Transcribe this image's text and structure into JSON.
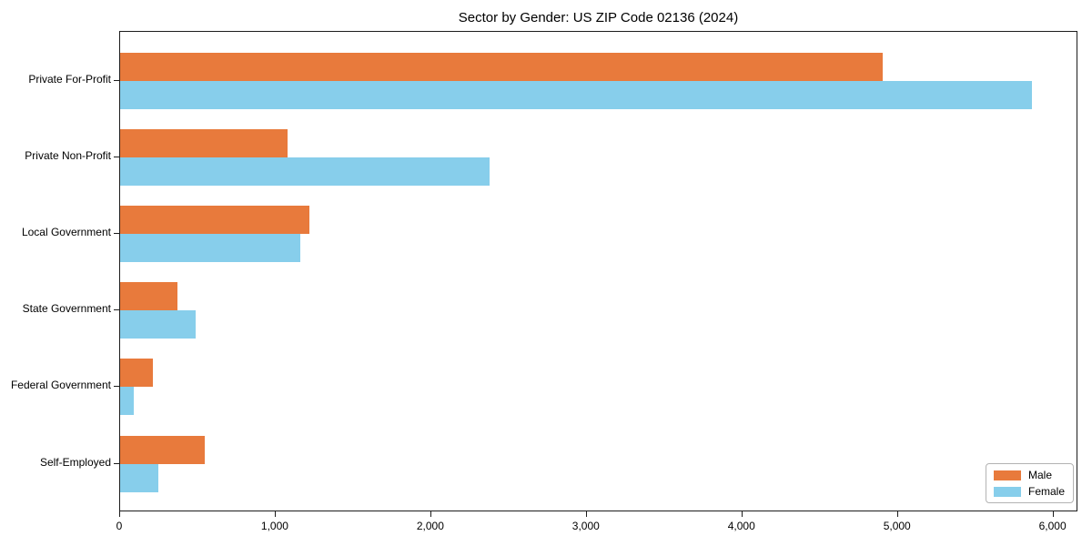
{
  "page": {
    "background": "#ffffff"
  },
  "chart_data": {
    "type": "bar",
    "orientation": "horizontal",
    "title": "Sector by Gender: US ZIP Code 02136 (2024)",
    "xlabel": "",
    "ylabel": "",
    "categories": [
      "Private For-Profit",
      "Private Non-Profit",
      "Local Government",
      "State Government",
      "Federal Government",
      "Self-Employed"
    ],
    "series": [
      {
        "name": "Male",
        "color": "#e87a3c",
        "values": [
          4910,
          1080,
          1220,
          370,
          210,
          545
        ]
      },
      {
        "name": "Female",
        "color": "#87ceeb",
        "values": [
          5870,
          2380,
          1160,
          485,
          90,
          245
        ]
      }
    ],
    "xlim": [
      0,
      6160
    ],
    "x_ticks": [
      0,
      1000,
      2000,
      3000,
      4000,
      5000,
      6000
    ],
    "x_tick_labels": [
      "0",
      "1,000",
      "2,000",
      "3,000",
      "4,000",
      "5,000",
      "6,000"
    ],
    "grid": false,
    "legend_position": "lower right",
    "axis_color": "#1c1c1c"
  }
}
